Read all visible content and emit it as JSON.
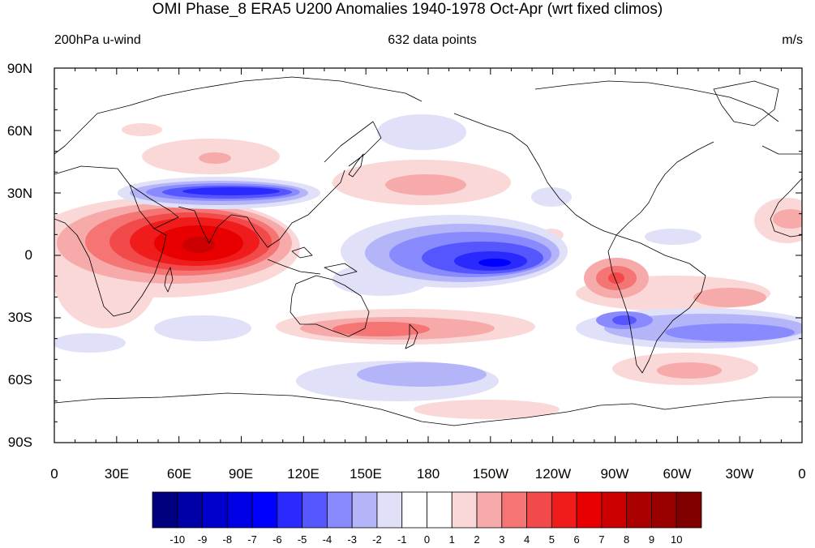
{
  "title": "OMI Phase_8 ERA5 U200 Anomalies 1940-1978 Oct-Apr (wrt fixed climos)",
  "subtitle_left": "200hPa u-wind",
  "subtitle_center": "632 data points",
  "subtitle_right": "m/s",
  "lat_ticks": [
    "90N",
    "60N",
    "30N",
    "0",
    "30S",
    "60S",
    "90S"
  ],
  "lon_ticks": [
    "0",
    "30E",
    "60E",
    "90E",
    "120E",
    "150E",
    "180",
    "150W",
    "120W",
    "90W",
    "60W",
    "30W",
    "0"
  ],
  "colorbar": {
    "labels": [
      "-10",
      "-9",
      "-8",
      "-7",
      "-6",
      "-5",
      "-4",
      "-3",
      "-2",
      "-1",
      "0",
      "1",
      "2",
      "3",
      "4",
      "5",
      "6",
      "7",
      "8",
      "9",
      "10"
    ],
    "colors": [
      "#00007f",
      "#0000a8",
      "#0000cc",
      "#0000e6",
      "#0000ff",
      "#2a2aff",
      "#5656ff",
      "#8a8aff",
      "#b4b4f8",
      "#e0e0f8",
      "#ffffff",
      "#ffffff",
      "#fad8d8",
      "#f7aaaa",
      "#f57474",
      "#f24a4a",
      "#f01c1c",
      "#e80000",
      "#cc0000",
      "#aa0000",
      "#990000",
      "#800000"
    ]
  },
  "colors": {
    "background": "#ffffff",
    "coastline": "#000000"
  }
}
